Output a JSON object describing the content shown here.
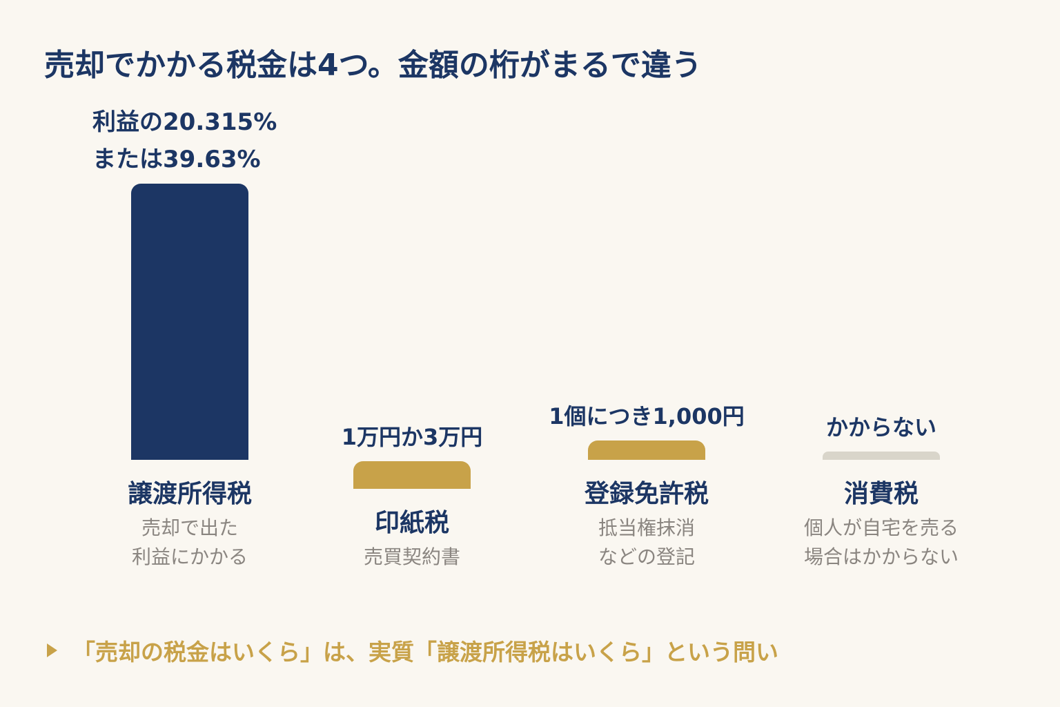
{
  "title": "売却でかかる税金は4つ。金額の桁がまるで違う",
  "chart_data": {
    "type": "bar",
    "title": "売却でかかる税金は4つ。金額の桁がまるで違う",
    "categories": [
      "譲渡所得税",
      "印紙税",
      "登録免許税",
      "消費税"
    ],
    "descriptions": [
      [
        "売却で出た",
        "利益にかかる"
      ],
      [
        "売買契約書"
      ],
      [
        "抵当権抹消",
        "などの登記"
      ],
      [
        "個人が自宅を売る",
        "場合はかからない"
      ]
    ],
    "value_labels": [
      [
        "利益の20.315%",
        "または39.63%"
      ],
      [
        "1万円か3万円"
      ],
      [
        "1個につき1,000円"
      ],
      [
        "かからない"
      ]
    ],
    "relative_magnitude": [
      1.0,
      0.1,
      0.07,
      0.02
    ],
    "colors": [
      "#1C3664",
      "#C8A249",
      "#C8A249",
      "#D9D5CA"
    ]
  },
  "footer": {
    "text": "「売却の税金はいくら」は、実質「譲渡所得税はいくら」という問い",
    "color": "#C8A249"
  }
}
